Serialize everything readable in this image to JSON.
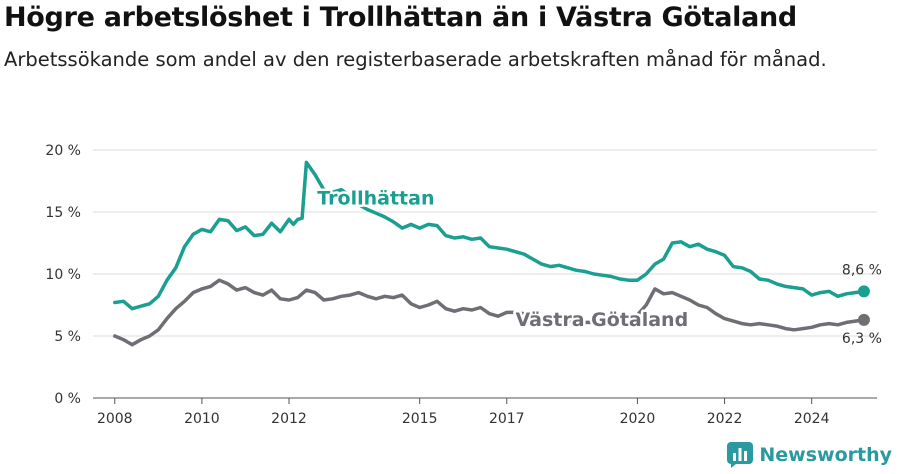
{
  "title": "Högre arbetslöshet i Trollhättan än i Västra Götaland",
  "subtitle": "Arbetssökande som andel av den registerbaserade arbetskraften månad för månad.",
  "brand": {
    "name": "Newsworthy"
  },
  "chart_data": {
    "type": "line",
    "ylim": [
      0,
      20
    ],
    "xlim": [
      2007.5,
      2025.5
    ],
    "y_ticks": [
      0,
      5,
      10,
      15,
      20
    ],
    "y_tick_labels": [
      "0 %",
      "5 %",
      "10 %",
      "15 %",
      "20 %"
    ],
    "x_ticks": [
      2008,
      2010,
      2012,
      2015,
      2017,
      2020,
      2022,
      2024
    ],
    "x_tick_labels": [
      "2008",
      "2010",
      "2012",
      "2015",
      "2017",
      "2020",
      "2022",
      "2024"
    ],
    "grid": true,
    "colors": {
      "trollhattan": "#1a9f91",
      "vastra": "#6e6e75",
      "grid": "#dcdcdc"
    },
    "series": [
      {
        "name": "Trollhättan",
        "end_label": "8,6 %",
        "points": [
          [
            2008.0,
            7.7
          ],
          [
            2008.2,
            7.8
          ],
          [
            2008.4,
            7.2
          ],
          [
            2008.6,
            7.4
          ],
          [
            2008.8,
            7.6
          ],
          [
            2009.0,
            8.2
          ],
          [
            2009.2,
            9.5
          ],
          [
            2009.4,
            10.5
          ],
          [
            2009.6,
            12.2
          ],
          [
            2009.8,
            13.2
          ],
          [
            2010.0,
            13.6
          ],
          [
            2010.2,
            13.4
          ],
          [
            2010.4,
            14.4
          ],
          [
            2010.6,
            14.3
          ],
          [
            2010.8,
            13.5
          ],
          [
            2011.0,
            13.8
          ],
          [
            2011.2,
            13.1
          ],
          [
            2011.4,
            13.2
          ],
          [
            2011.6,
            14.1
          ],
          [
            2011.8,
            13.4
          ],
          [
            2012.0,
            14.4
          ],
          [
            2012.1,
            14.0
          ],
          [
            2012.2,
            14.4
          ],
          [
            2012.3,
            14.5
          ],
          [
            2012.4,
            19.0
          ],
          [
            2012.6,
            18.0
          ],
          [
            2012.8,
            16.8
          ],
          [
            2013.0,
            16.6
          ],
          [
            2013.2,
            16.8
          ],
          [
            2013.4,
            16.3
          ],
          [
            2013.6,
            15.6
          ],
          [
            2013.8,
            15.2
          ],
          [
            2014.0,
            14.9
          ],
          [
            2014.2,
            14.6
          ],
          [
            2014.4,
            14.2
          ],
          [
            2014.6,
            13.7
          ],
          [
            2014.8,
            14.0
          ],
          [
            2015.0,
            13.7
          ],
          [
            2015.2,
            14.0
          ],
          [
            2015.4,
            13.9
          ],
          [
            2015.6,
            13.1
          ],
          [
            2015.8,
            12.9
          ],
          [
            2016.0,
            13.0
          ],
          [
            2016.2,
            12.8
          ],
          [
            2016.4,
            12.9
          ],
          [
            2016.6,
            12.2
          ],
          [
            2016.8,
            12.1
          ],
          [
            2017.0,
            12.0
          ],
          [
            2017.2,
            11.8
          ],
          [
            2017.4,
            11.6
          ],
          [
            2017.6,
            11.2
          ],
          [
            2017.8,
            10.8
          ],
          [
            2018.0,
            10.6
          ],
          [
            2018.2,
            10.7
          ],
          [
            2018.4,
            10.5
          ],
          [
            2018.6,
            10.3
          ],
          [
            2018.8,
            10.2
          ],
          [
            2019.0,
            10.0
          ],
          [
            2019.2,
            9.9
          ],
          [
            2019.4,
            9.8
          ],
          [
            2019.6,
            9.6
          ],
          [
            2019.8,
            9.5
          ],
          [
            2020.0,
            9.5
          ],
          [
            2020.2,
            10.0
          ],
          [
            2020.4,
            10.8
          ],
          [
            2020.6,
            11.2
          ],
          [
            2020.8,
            12.5
          ],
          [
            2021.0,
            12.6
          ],
          [
            2021.2,
            12.2
          ],
          [
            2021.4,
            12.4
          ],
          [
            2021.6,
            12.0
          ],
          [
            2021.8,
            11.8
          ],
          [
            2022.0,
            11.5
          ],
          [
            2022.2,
            10.6
          ],
          [
            2022.4,
            10.5
          ],
          [
            2022.6,
            10.2
          ],
          [
            2022.8,
            9.6
          ],
          [
            2023.0,
            9.5
          ],
          [
            2023.2,
            9.2
          ],
          [
            2023.4,
            9.0
          ],
          [
            2023.6,
            8.9
          ],
          [
            2023.8,
            8.8
          ],
          [
            2024.0,
            8.3
          ],
          [
            2024.2,
            8.5
          ],
          [
            2024.4,
            8.6
          ],
          [
            2024.6,
            8.2
          ],
          [
            2024.8,
            8.4
          ],
          [
            2025.0,
            8.5
          ],
          [
            2025.2,
            8.6
          ]
        ]
      },
      {
        "name": "Västra Götaland",
        "end_label": "6,3 %",
        "points": [
          [
            2008.0,
            5.0
          ],
          [
            2008.2,
            4.7
          ],
          [
            2008.4,
            4.3
          ],
          [
            2008.6,
            4.7
          ],
          [
            2008.8,
            5.0
          ],
          [
            2009.0,
            5.5
          ],
          [
            2009.2,
            6.4
          ],
          [
            2009.4,
            7.2
          ],
          [
            2009.6,
            7.8
          ],
          [
            2009.8,
            8.5
          ],
          [
            2010.0,
            8.8
          ],
          [
            2010.2,
            9.0
          ],
          [
            2010.4,
            9.5
          ],
          [
            2010.6,
            9.2
          ],
          [
            2010.8,
            8.7
          ],
          [
            2011.0,
            8.9
          ],
          [
            2011.2,
            8.5
          ],
          [
            2011.4,
            8.3
          ],
          [
            2011.6,
            8.7
          ],
          [
            2011.8,
            8.0
          ],
          [
            2012.0,
            7.9
          ],
          [
            2012.2,
            8.1
          ],
          [
            2012.4,
            8.7
          ],
          [
            2012.6,
            8.5
          ],
          [
            2012.8,
            7.9
          ],
          [
            2013.0,
            8.0
          ],
          [
            2013.2,
            8.2
          ],
          [
            2013.4,
            8.3
          ],
          [
            2013.6,
            8.5
          ],
          [
            2013.8,
            8.2
          ],
          [
            2014.0,
            8.0
          ],
          [
            2014.2,
            8.2
          ],
          [
            2014.4,
            8.1
          ],
          [
            2014.6,
            8.3
          ],
          [
            2014.8,
            7.6
          ],
          [
            2015.0,
            7.3
          ],
          [
            2015.2,
            7.5
          ],
          [
            2015.4,
            7.8
          ],
          [
            2015.6,
            7.2
          ],
          [
            2015.8,
            7.0
          ],
          [
            2016.0,
            7.2
          ],
          [
            2016.2,
            7.1
          ],
          [
            2016.4,
            7.3
          ],
          [
            2016.6,
            6.8
          ],
          [
            2016.8,
            6.6
          ],
          [
            2017.0,
            6.9
          ],
          [
            2017.2,
            6.9
          ],
          [
            2017.4,
            6.8
          ],
          [
            2017.6,
            6.6
          ],
          [
            2017.8,
            6.5
          ],
          [
            2018.0,
            6.4
          ],
          [
            2018.2,
            6.3
          ],
          [
            2018.4,
            6.2
          ],
          [
            2018.6,
            6.2
          ],
          [
            2018.8,
            6.1
          ],
          [
            2019.0,
            6.1
          ],
          [
            2019.2,
            6.2
          ],
          [
            2019.4,
            6.2
          ],
          [
            2019.6,
            6.3
          ],
          [
            2019.8,
            6.6
          ],
          [
            2020.0,
            6.7
          ],
          [
            2020.2,
            7.5
          ],
          [
            2020.4,
            8.8
          ],
          [
            2020.6,
            8.4
          ],
          [
            2020.8,
            8.5
          ],
          [
            2021.0,
            8.2
          ],
          [
            2021.2,
            7.9
          ],
          [
            2021.4,
            7.5
          ],
          [
            2021.6,
            7.3
          ],
          [
            2021.8,
            6.8
          ],
          [
            2022.0,
            6.4
          ],
          [
            2022.2,
            6.2
          ],
          [
            2022.4,
            6.0
          ],
          [
            2022.6,
            5.9
          ],
          [
            2022.8,
            6.0
          ],
          [
            2023.0,
            5.9
          ],
          [
            2023.2,
            5.8
          ],
          [
            2023.4,
            5.6
          ],
          [
            2023.6,
            5.5
          ],
          [
            2023.8,
            5.6
          ],
          [
            2024.0,
            5.7
          ],
          [
            2024.2,
            5.9
          ],
          [
            2024.4,
            6.0
          ],
          [
            2024.6,
            5.9
          ],
          [
            2024.8,
            6.1
          ],
          [
            2025.0,
            6.2
          ],
          [
            2025.2,
            6.3
          ]
        ]
      }
    ]
  }
}
